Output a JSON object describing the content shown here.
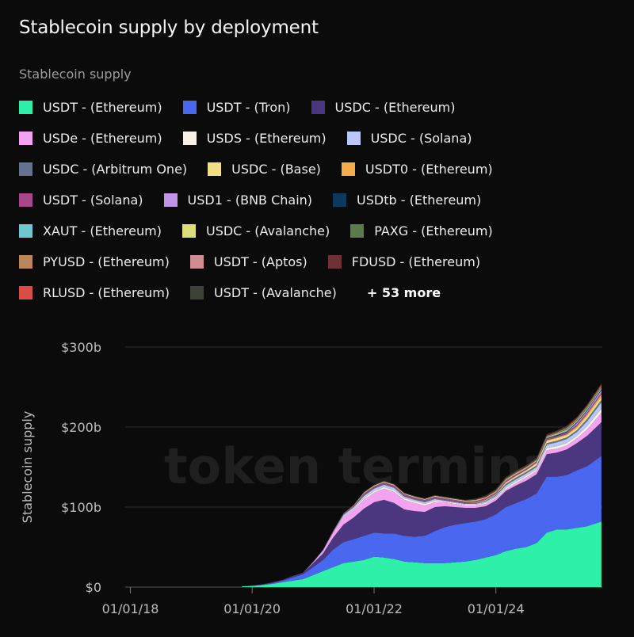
{
  "title": "Stablecoin supply by deployment",
  "legend_heading": "Stablecoin supply",
  "watermark": "token terminal_",
  "legend_more": "+ 53 more",
  "legend_rows": [
    [
      {
        "label": "USDT - (Ethereum)",
        "color": "#2ef0a8"
      },
      {
        "label": "USDT - (Tron)",
        "color": "#4a68ef"
      },
      {
        "label": "USDC - (Ethereum)",
        "color": "#4a3780"
      }
    ],
    [
      {
        "label": "USDe - (Ethereum)",
        "color": "#f3a3ef"
      },
      {
        "label": "USDS - (Ethereum)",
        "color": "#f6f2e4"
      },
      {
        "label": "USDC - (Solana)",
        "color": "#b9c8f6"
      }
    ],
    [
      {
        "label": "USDC - (Arbitrum One)",
        "color": "#64728f"
      },
      {
        "label": "USDC - (Base)",
        "color": "#f1df84"
      },
      {
        "label": "USDT0 - (Ethereum)",
        "color": "#f4ad48"
      }
    ],
    [
      {
        "label": "USDT - (Solana)",
        "color": "#a8468a"
      },
      {
        "label": "USD1 - (BNB Chain)",
        "color": "#c291e8"
      },
      {
        "label": "USDtb - (Ethereum)",
        "color": "#0d3a5c"
      }
    ],
    [
      {
        "label": "XAUT - (Ethereum)",
        "color": "#6fc6d1"
      },
      {
        "label": "USDC - (Avalanche)",
        "color": "#dcdf78"
      },
      {
        "label": "PAXG - (Ethereum)",
        "color": "#5d7a4c"
      }
    ],
    [
      {
        "label": "PYUSD - (Ethereum)",
        "color": "#b9875a"
      },
      {
        "label": "USDT - (Aptos)",
        "color": "#cf8d92"
      },
      {
        "label": "FDUSD - (Ethereum)",
        "color": "#6e3136"
      }
    ],
    [
      {
        "label": "RLUSD - (Ethereum)",
        "color": "#d84d44"
      },
      {
        "label": "USDT - (Avalanche)",
        "color": "#3d4236"
      }
    ]
  ],
  "chart_data": {
    "type": "area",
    "stacked": true,
    "ylabel": "Stablecoin supply",
    "y_ticks": [
      "$0",
      "$100b",
      "$200b",
      "$300b"
    ],
    "y_tick_values": [
      0,
      100,
      200,
      300
    ],
    "ylim": [
      0,
      300
    ],
    "x_ticks": [
      "01/01/18",
      "01/01/20",
      "01/01/22",
      "01/01/24"
    ],
    "x_tick_values": [
      "2018-01-01",
      "2020-01-01",
      "2022-01-01",
      "2024-01-01"
    ],
    "xlim": [
      "2017-12-01",
      "2025-09-30"
    ],
    "grid": true,
    "x": [
      "2019-11-01",
      "2020-01-01",
      "2020-03-01",
      "2020-05-01",
      "2020-07-01",
      "2020-09-01",
      "2020-11-01",
      "2021-01-01",
      "2021-03-01",
      "2021-05-01",
      "2021-07-01",
      "2021-09-01",
      "2021-11-01",
      "2022-01-01",
      "2022-03-01",
      "2022-05-01",
      "2022-07-01",
      "2022-09-01",
      "2022-11-01",
      "2023-01-01",
      "2023-03-01",
      "2023-05-01",
      "2023-07-01",
      "2023-09-01",
      "2023-11-01",
      "2024-01-01",
      "2024-03-01",
      "2024-05-01",
      "2024-07-01",
      "2024-09-01",
      "2024-11-01",
      "2025-01-01",
      "2025-03-01",
      "2025-05-01",
      "2025-07-01",
      "2025-09-25"
    ],
    "series": [
      {
        "name": "USDT - (Ethereum)",
        "values": [
          1,
          1.5,
          2.5,
          4,
          6,
          8,
          10,
          15,
          20,
          25,
          30,
          32,
          34,
          38,
          37,
          35,
          32,
          31,
          30,
          30,
          30,
          31,
          32,
          34,
          37,
          40,
          45,
          48,
          50,
          55,
          68,
          72,
          72,
          74,
          76,
          82
        ]
      },
      {
        "name": "USDT - (Tron)",
        "values": [
          0,
          0,
          0.5,
          1,
          2,
          4,
          6,
          10,
          14,
          22,
          26,
          28,
          30,
          30,
          30,
          32,
          32,
          32,
          34,
          40,
          45,
          47,
          48,
          48,
          48,
          51,
          55,
          57,
          60,
          62,
          70,
          66,
          68,
          72,
          75,
          82
        ]
      },
      {
        "name": "USDC - (Ethereum)",
        "values": [
          0,
          0.5,
          0.5,
          1,
          1,
          2,
          2,
          5,
          8,
          15,
          22,
          27,
          34,
          38,
          42,
          38,
          33,
          32,
          30,
          30,
          26,
          22,
          19,
          17,
          16,
          17,
          20,
          22,
          23,
          24,
          28,
          30,
          32,
          34,
          38,
          42
        ]
      },
      {
        "name": "USDe - (Ethereum)",
        "values": [
          0,
          0,
          0,
          0,
          0,
          0,
          0,
          1,
          3,
          6,
          9,
          10,
          11,
          12,
          14,
          14,
          12,
          10,
          8,
          6,
          5,
          4,
          3,
          3,
          3,
          3,
          2,
          3,
          4,
          4,
          5,
          5,
          5,
          6,
          8,
          12
        ]
      },
      {
        "name": "USDS - (Ethereum)",
        "values": [
          0,
          0,
          0,
          0,
          0,
          0,
          0,
          0,
          0,
          0,
          1,
          1,
          2,
          2,
          2,
          2,
          2,
          2,
          2,
          2,
          1,
          1,
          1,
          1,
          1,
          1,
          2,
          2,
          2,
          2,
          3,
          3,
          3,
          3,
          4,
          5
        ]
      },
      {
        "name": "USDC - (Solana)",
        "values": [
          0,
          0,
          0,
          0,
          0,
          0,
          0,
          0.5,
          1,
          1,
          2,
          2,
          3,
          3,
          3,
          3,
          2,
          2,
          2,
          2,
          1,
          1,
          1,
          1,
          2,
          2,
          3,
          3,
          3,
          3,
          4,
          5,
          5,
          5,
          6,
          8
        ]
      },
      {
        "name": "USDC - (Arbitrum One)",
        "values": [
          0,
          0,
          0,
          0,
          0,
          0,
          0,
          0,
          0,
          0.5,
          1,
          1,
          1,
          1,
          1,
          1,
          1,
          1,
          1,
          1,
          1,
          1,
          1,
          1,
          1,
          1,
          2,
          2,
          2,
          2,
          2,
          2,
          2,
          2,
          3,
          3
        ]
      },
      {
        "name": "USDC - (Base)",
        "values": [
          0,
          0,
          0,
          0,
          0,
          0,
          0,
          0,
          0,
          0,
          0,
          0,
          0,
          0,
          0,
          0,
          0,
          0,
          0,
          0,
          0,
          0,
          0,
          0.5,
          1,
          1,
          2,
          2,
          2,
          3,
          3,
          3,
          3,
          3,
          4,
          4
        ]
      },
      {
        "name": "USDT0 - (Ethereum)",
        "values": [
          0,
          0,
          0,
          0,
          0,
          0,
          0,
          0,
          0,
          0,
          0,
          0,
          0,
          0,
          0,
          0,
          0,
          0,
          0,
          0,
          0,
          0,
          0,
          0,
          0,
          0,
          0,
          0,
          0,
          0,
          0.5,
          1,
          1,
          2,
          2,
          3
        ]
      },
      {
        "name": "USDT - (Solana)",
        "values": [
          0,
          0,
          0,
          0,
          0,
          0,
          0,
          0,
          0.5,
          1,
          1,
          1,
          2,
          2,
          2,
          2,
          2,
          2,
          2,
          2,
          2,
          2,
          2,
          2,
          2,
          2,
          2,
          2,
          2,
          2,
          2,
          2,
          2,
          2,
          2,
          2
        ]
      },
      {
        "name": "USD1 - (BNB Chain)",
        "values": [
          0,
          0,
          0,
          0,
          0,
          0,
          0,
          0,
          0,
          0,
          0,
          0,
          0,
          0,
          0,
          0,
          0,
          0,
          0,
          0,
          0,
          0,
          0,
          0,
          0,
          0,
          0,
          0,
          0,
          0,
          0,
          0,
          0.5,
          2,
          2,
          3
        ]
      },
      {
        "name": "USDtb - (Ethereum)",
        "values": [
          0,
          0,
          0,
          0,
          0,
          0,
          0,
          0,
          0,
          0,
          0,
          0,
          0,
          0,
          0,
          0,
          0,
          0,
          0,
          0,
          0,
          0,
          0,
          0,
          0,
          0,
          0,
          0,
          0,
          0,
          0.5,
          1,
          1,
          1,
          1,
          1
        ]
      },
      {
        "name": "XAUT - (Ethereum)",
        "values": [
          0,
          0,
          0,
          0,
          0,
          0,
          0,
          0,
          0,
          0,
          0,
          0,
          0,
          0,
          0,
          0,
          0,
          0,
          0,
          0,
          0,
          0,
          0,
          0,
          0,
          0.5,
          0.5,
          0.5,
          0.5,
          0.5,
          0.5,
          1,
          1,
          1,
          1,
          1
        ]
      },
      {
        "name": "USDC - (Avalanche)",
        "values": [
          0,
          0,
          0,
          0,
          0,
          0,
          0,
          0,
          0,
          0,
          0,
          0.5,
          1,
          1,
          1,
          1,
          1,
          1,
          1,
          1,
          1,
          1,
          1,
          1,
          1,
          1,
          1,
          1,
          1,
          1,
          1,
          1,
          1,
          1,
          1,
          1
        ]
      },
      {
        "name": "PAXG - (Ethereum)",
        "values": [
          0,
          0,
          0,
          0,
          0,
          0,
          0,
          0,
          0,
          0,
          0,
          0,
          0,
          0,
          0,
          0,
          0,
          0,
          0,
          0,
          0,
          0,
          0,
          0,
          0,
          0.5,
          0.5,
          0.5,
          0.5,
          0.5,
          0.5,
          0.5,
          1,
          1,
          1,
          1
        ]
      },
      {
        "name": "PYUSD - (Ethereum)",
        "values": [
          0,
          0,
          0,
          0,
          0,
          0,
          0,
          0,
          0,
          0,
          0,
          0,
          0,
          0,
          0,
          0,
          0,
          0,
          0,
          0,
          0,
          0,
          0,
          0.5,
          0.5,
          0.5,
          0.5,
          0.5,
          0.5,
          0.5,
          0.5,
          0.5,
          0.5,
          0.5,
          1,
          1
        ]
      },
      {
        "name": "USDT - (Aptos)",
        "values": [
          0,
          0,
          0,
          0,
          0,
          0,
          0,
          0,
          0,
          0,
          0,
          0,
          0,
          0,
          0,
          0,
          0,
          0,
          0,
          0,
          0,
          0,
          0,
          0,
          0,
          0,
          0,
          0,
          0,
          0,
          0.5,
          0.5,
          1,
          1,
          1,
          1
        ]
      },
      {
        "name": "FDUSD - (Ethereum)",
        "values": [
          0,
          0,
          0,
          0,
          0,
          0,
          0,
          0,
          0,
          0,
          0,
          0,
          0,
          0,
          0,
          0,
          0,
          0,
          0,
          0,
          0,
          0,
          0,
          0.5,
          1,
          1,
          1,
          1,
          1,
          1,
          1,
          1,
          1,
          0.5,
          0.5,
          0.5
        ]
      },
      {
        "name": "RLUSD - (Ethereum)",
        "values": [
          0,
          0,
          0,
          0,
          0,
          0,
          0,
          0,
          0,
          0,
          0,
          0,
          0,
          0,
          0,
          0,
          0,
          0,
          0,
          0,
          0,
          0,
          0,
          0,
          0,
          0,
          0,
          0,
          0,
          0,
          0,
          0,
          0.5,
          0.5,
          0.5,
          1
        ]
      },
      {
        "name": "USDT - (Avalanche)",
        "values": [
          0,
          0,
          0,
          0,
          0,
          0,
          0,
          0,
          0,
          0,
          0,
          0.5,
          1,
          1,
          1,
          1,
          1,
          1,
          1,
          1,
          1,
          1,
          1,
          1,
          1,
          1,
          1,
          1,
          1,
          1,
          1,
          1,
          1,
          1,
          1,
          1
        ]
      }
    ]
  }
}
